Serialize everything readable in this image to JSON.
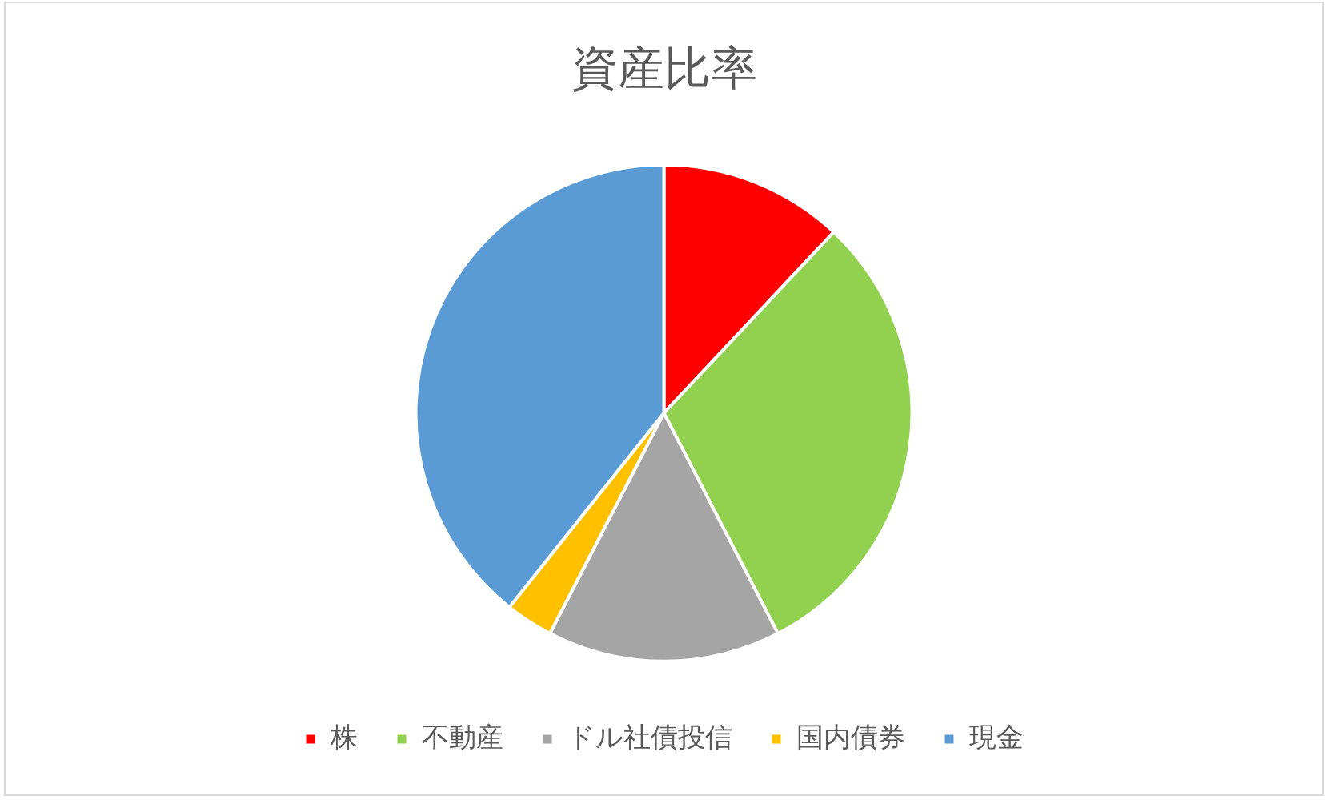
{
  "chart_data": {
    "type": "pie",
    "title": "資産比率",
    "categories": [
      "株",
      "不動産",
      "ドル社債投信",
      "国内債券",
      "現金"
    ],
    "values": [
      12.0,
      30.4,
      15.2,
      3.1,
      39.3
    ],
    "colors": [
      "#ff0000",
      "#92d050",
      "#a5a5a5",
      "#ffc000",
      "#5b9bd5"
    ],
    "legend": "bottom"
  }
}
